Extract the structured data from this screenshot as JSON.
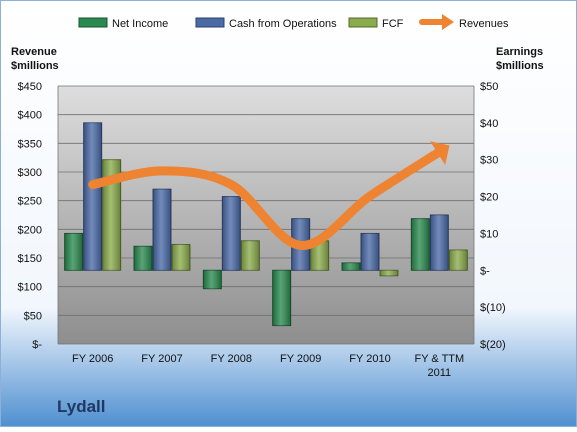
{
  "chart_data": {
    "type": "bar",
    "categories": [
      "FY 2006",
      "FY 2007",
      "FY 2008",
      "FY 2009",
      "FY 2010",
      "FY & TTM 2011"
    ],
    "category_label_lines": [
      [
        "FY 2006"
      ],
      [
        "FY 2007"
      ],
      [
        "FY 2008"
      ],
      [
        "FY 2009"
      ],
      [
        "FY 2010"
      ],
      [
        "FY & TTM",
        "2011"
      ]
    ],
    "title": "Lydall",
    "left_axis": {
      "label_lines": [
        "Revenue",
        "$millions"
      ],
      "ylim": [
        0,
        450
      ],
      "ticks": [
        0,
        50,
        100,
        150,
        200,
        250,
        300,
        350,
        400,
        450
      ],
      "tick_labels": [
        "$-",
        "$50",
        "$100",
        "$150",
        "$200",
        "$250",
        "$300",
        "$350",
        "$400",
        "$450"
      ]
    },
    "right_axis": {
      "label_lines": [
        "Earnings",
        "$millions"
      ],
      "ylim": [
        -20,
        50
      ],
      "ticks": [
        -20,
        -10,
        0,
        10,
        20,
        30,
        40,
        50
      ],
      "tick_labels": [
        "$(20)",
        "$(10)",
        "$-",
        "$10",
        "$20",
        "$30",
        "$40",
        "$50"
      ]
    },
    "series": [
      {
        "name": "Net Income",
        "axis": "right",
        "kind": "bar",
        "color": "#2a8a4f",
        "values": [
          10,
          6.5,
          -5,
          -15,
          2,
          14
        ]
      },
      {
        "name": "Cash from Operations",
        "axis": "right",
        "kind": "bar",
        "color": "#4a6aa8",
        "values": [
          40,
          22,
          20,
          14,
          10,
          15
        ]
      },
      {
        "name": "FCF",
        "axis": "right",
        "kind": "bar",
        "color": "#8aac4c",
        "values": [
          30,
          7,
          8,
          8,
          -1.5,
          5.5
        ]
      },
      {
        "name": "Revenues",
        "axis": "left",
        "kind": "line",
        "color": "#ee8332",
        "values": [
          278,
          302,
          278,
          172,
          258,
          335
        ]
      }
    ],
    "legend_position": "top",
    "grid": true
  }
}
